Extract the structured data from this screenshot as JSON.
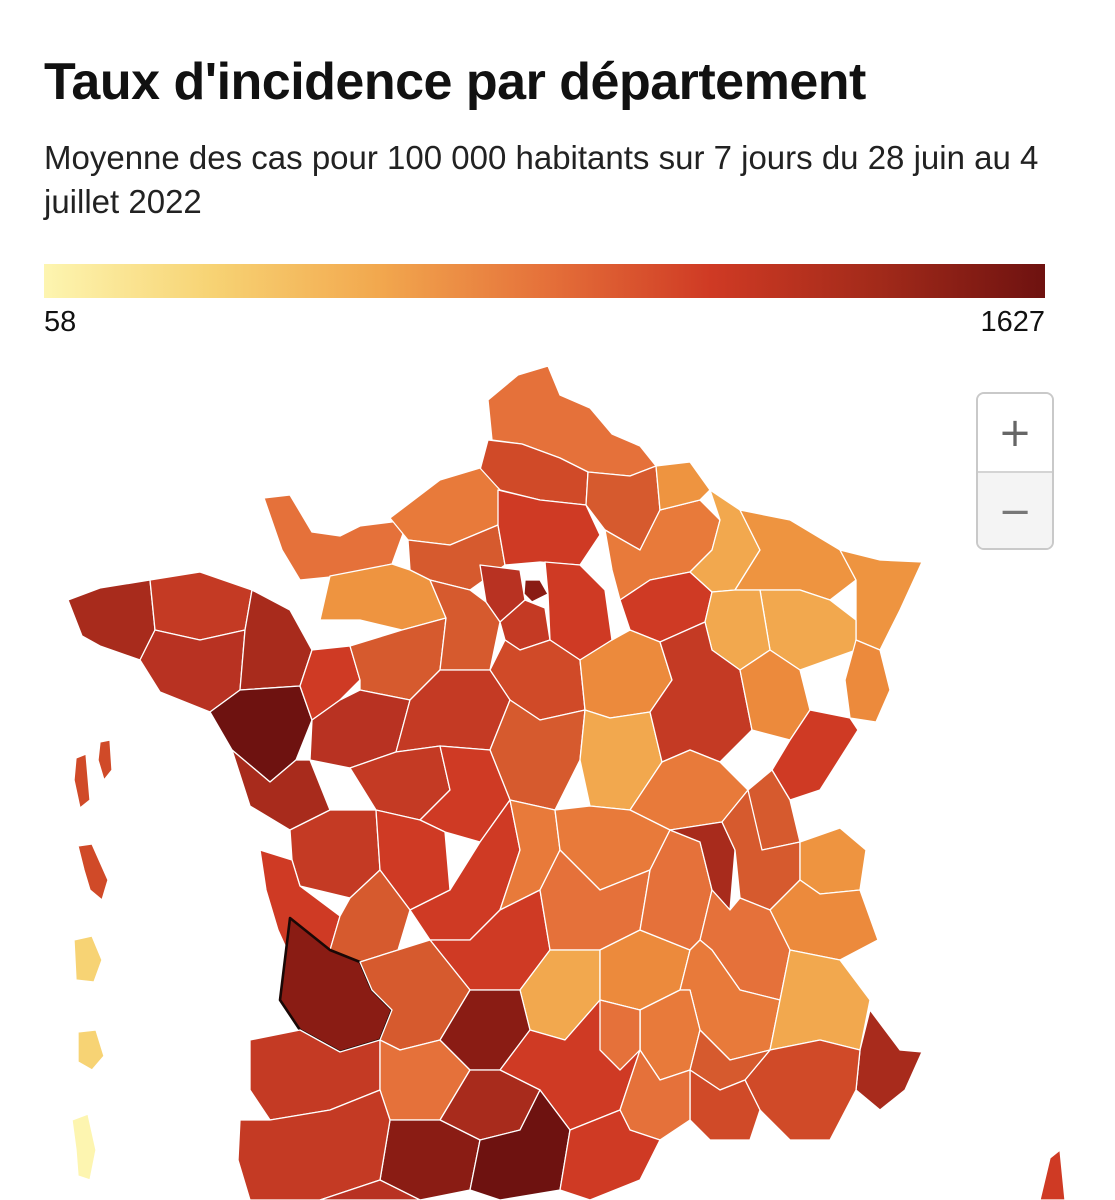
{
  "header": {
    "title": "Taux d'incidence par département",
    "subtitle": "Moyenne des cas pour 100 000 habitants sur 7 jours du 28 juin au 4 juillet 2022"
  },
  "legend": {
    "min_label": "58",
    "max_label": "1627",
    "min_value": 58,
    "max_value": 1627,
    "colors": [
      "#fdf5b0",
      "#f7d374",
      "#f2a84e",
      "#e5713a",
      "#cf3a24",
      "#a22a1a",
      "#6e1210"
    ]
  },
  "zoom": {
    "in_label": "+",
    "out_label": "−"
  },
  "map": {
    "region": "France",
    "highlighted_department": "Gironde"
  }
}
